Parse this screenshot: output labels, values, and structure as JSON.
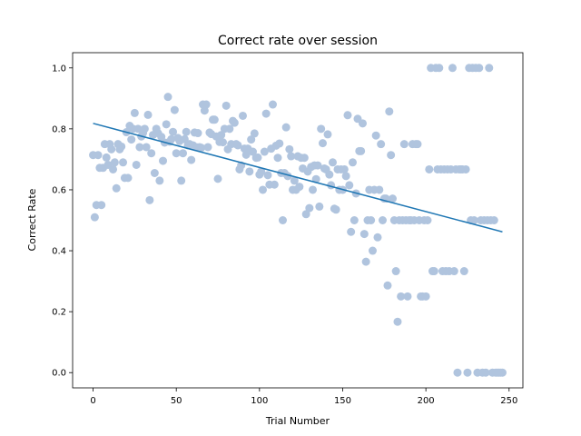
{
  "chart_data": {
    "type": "scatter",
    "title": "Correct rate over session",
    "xlabel": "Trial Number",
    "ylabel": "Correct Rate",
    "xlim": [
      -12.3,
      258.3
    ],
    "ylim": [
      -0.05,
      1.05
    ],
    "xticks": [
      0,
      50,
      100,
      150,
      200,
      250
    ],
    "yticks": [
      0.0,
      0.2,
      0.4,
      0.6,
      0.8,
      1.0
    ],
    "xtick_labels": [
      "0",
      "50",
      "100",
      "150",
      "200",
      "250"
    ],
    "ytick_labels": [
      "0.0",
      "0.2",
      "0.4",
      "0.6",
      "0.8",
      "1.0"
    ],
    "grid": false,
    "point_color": "#b0c4de",
    "trend_color": "#1f77b4",
    "trend_line": {
      "x": [
        0,
        246
      ],
      "y": [
        0.818,
        0.462
      ]
    },
    "points": [
      [
        0,
        0.714
      ],
      [
        1,
        0.51
      ],
      [
        2,
        0.55
      ],
      [
        3,
        0.714
      ],
      [
        4,
        0.672
      ],
      [
        5,
        0.55
      ],
      [
        6,
        0.672
      ],
      [
        7,
        0.75
      ],
      [
        8,
        0.706
      ],
      [
        9,
        0.682
      ],
      [
        10,
        0.75
      ],
      [
        11,
        0.733
      ],
      [
        12,
        0.667
      ],
      [
        13,
        0.69
      ],
      [
        14,
        0.605
      ],
      [
        15,
        0.75
      ],
      [
        16,
        0.733
      ],
      [
        17,
        0.742
      ],
      [
        18,
        0.69
      ],
      [
        19,
        0.639
      ],
      [
        20,
        0.789
      ],
      [
        21,
        0.639
      ],
      [
        22,
        0.81
      ],
      [
        23,
        0.765
      ],
      [
        24,
        0.8
      ],
      [
        25,
        0.852
      ],
      [
        26,
        0.682
      ],
      [
        27,
        0.8
      ],
      [
        28,
        0.74
      ],
      [
        29,
        0.775
      ],
      [
        30,
        0.786
      ],
      [
        31,
        0.8
      ],
      [
        32,
        0.74
      ],
      [
        33,
        0.846
      ],
      [
        34,
        0.566
      ],
      [
        35,
        0.72
      ],
      [
        36,
        0.78
      ],
      [
        37,
        0.655
      ],
      [
        38,
        0.8
      ],
      [
        39,
        0.786
      ],
      [
        40,
        0.63
      ],
      [
        41,
        0.774
      ],
      [
        42,
        0.695
      ],
      [
        43,
        0.755
      ],
      [
        44,
        0.815
      ],
      [
        45,
        0.905
      ],
      [
        46,
        0.758
      ],
      [
        47,
        0.766
      ],
      [
        48,
        0.79
      ],
      [
        49,
        0.862
      ],
      [
        50,
        0.72
      ],
      [
        51,
        0.77
      ],
      [
        52,
        0.76
      ],
      [
        53,
        0.63
      ],
      [
        54,
        0.72
      ],
      [
        55,
        0.766
      ],
      [
        56,
        0.79
      ],
      [
        57,
        0.746
      ],
      [
        58,
        0.75
      ],
      [
        59,
        0.698
      ],
      [
        60,
        0.746
      ],
      [
        61,
        0.788
      ],
      [
        62,
        0.74
      ],
      [
        63,
        0.786
      ],
      [
        64,
        0.74
      ],
      [
        65,
        0.738
      ],
      [
        66,
        0.88
      ],
      [
        67,
        0.86
      ],
      [
        68,
        0.88
      ],
      [
        69,
        0.74
      ],
      [
        70,
        0.788
      ],
      [
        71,
        0.783
      ],
      [
        72,
        0.83
      ],
      [
        73,
        0.83
      ],
      [
        74,
        0.775
      ],
      [
        75,
        0.636
      ],
      [
        76,
        0.757
      ],
      [
        77,
        0.78
      ],
      [
        78,
        0.756
      ],
      [
        79,
        0.8
      ],
      [
        80,
        0.876
      ],
      [
        81,
        0.733
      ],
      [
        82,
        0.8
      ],
      [
        83,
        0.75
      ],
      [
        84,
        0.826
      ],
      [
        85,
        0.82
      ],
      [
        86,
        0.75
      ],
      [
        87,
        0.746
      ],
      [
        88,
        0.667
      ],
      [
        89,
        0.68
      ],
      [
        90,
        0.843
      ],
      [
        91,
        0.735
      ],
      [
        92,
        0.715
      ],
      [
        93,
        0.735
      ],
      [
        94,
        0.66
      ],
      [
        95,
        0.765
      ],
      [
        96,
        0.725
      ],
      [
        97,
        0.785
      ],
      [
        98,
        0.705
      ],
      [
        99,
        0.706
      ],
      [
        100,
        0.65
      ],
      [
        101,
        0.66
      ],
      [
        102,
        0.6
      ],
      [
        103,
        0.725
      ],
      [
        104,
        0.85
      ],
      [
        105,
        0.648
      ],
      [
        106,
        0.617
      ],
      [
        107,
        0.735
      ],
      [
        108,
        0.88
      ],
      [
        109,
        0.617
      ],
      [
        110,
        0.745
      ],
      [
        111,
        0.705
      ],
      [
        112,
        0.752
      ],
      [
        113,
        0.655
      ],
      [
        114,
        0.5
      ],
      [
        115,
        0.655
      ],
      [
        116,
        0.805
      ],
      [
        117,
        0.645
      ],
      [
        118,
        0.733
      ],
      [
        119,
        0.71
      ],
      [
        120,
        0.6
      ],
      [
        121,
        0.63
      ],
      [
        122,
        0.6
      ],
      [
        123,
        0.71
      ],
      [
        124,
        0.61
      ],
      [
        125,
        0.705
      ],
      [
        126,
        0.67
      ],
      [
        127,
        0.705
      ],
      [
        128,
        0.52
      ],
      [
        129,
        0.66
      ],
      [
        130,
        0.54
      ],
      [
        131,
        0.675
      ],
      [
        132,
        0.6
      ],
      [
        133,
        0.68
      ],
      [
        134,
        0.635
      ],
      [
        135,
        0.68
      ],
      [
        136,
        0.545
      ],
      [
        137,
        0.8
      ],
      [
        138,
        0.753
      ],
      [
        139,
        0.67
      ],
      [
        140,
        0.667
      ],
      [
        141,
        0.782
      ],
      [
        142,
        0.65
      ],
      [
        143,
        0.615
      ],
      [
        144,
        0.69
      ],
      [
        145,
        0.538
      ],
      [
        146,
        0.535
      ],
      [
        147,
        0.667
      ],
      [
        148,
        0.6
      ],
      [
        149,
        0.667
      ],
      [
        150,
        0.6
      ],
      [
        151,
        0.667
      ],
      [
        152,
        0.645
      ],
      [
        153,
        0.845
      ],
      [
        154,
        0.615
      ],
      [
        155,
        0.462
      ],
      [
        156,
        0.69
      ],
      [
        157,
        0.5
      ],
      [
        158,
        0.588
      ],
      [
        159,
        0.833
      ],
      [
        160,
        0.727
      ],
      [
        161,
        0.727
      ],
      [
        162,
        0.818
      ],
      [
        163,
        0.455
      ],
      [
        164,
        0.364
      ],
      [
        165,
        0.5
      ],
      [
        166,
        0.6
      ],
      [
        167,
        0.5
      ],
      [
        168,
        0.4
      ],
      [
        169,
        0.6
      ],
      [
        170,
        0.778
      ],
      [
        171,
        0.444
      ],
      [
        172,
        0.6
      ],
      [
        173,
        0.75
      ],
      [
        174,
        0.5
      ],
      [
        175,
        0.571
      ],
      [
        176,
        0.571
      ],
      [
        177,
        0.286
      ],
      [
        178,
        0.857
      ],
      [
        179,
        0.714
      ],
      [
        180,
        0.571
      ],
      [
        181,
        0.5
      ],
      [
        182,
        0.333
      ],
      [
        183,
        0.167
      ],
      [
        184,
        0.5
      ],
      [
        185,
        0.25
      ],
      [
        186,
        0.5
      ],
      [
        187,
        0.75
      ],
      [
        188,
        0.5
      ],
      [
        189,
        0.25
      ],
      [
        190,
        0.5
      ],
      [
        191,
        0.5
      ],
      [
        192,
        0.75
      ],
      [
        193,
        0.5
      ],
      [
        194,
        0.75
      ],
      [
        195,
        0.75
      ],
      [
        196,
        0.5
      ],
      [
        197,
        0.25
      ],
      [
        198,
        0.25
      ],
      [
        199,
        0.5
      ],
      [
        200,
        0.25
      ],
      [
        201,
        0.5
      ],
      [
        202,
        0.667
      ],
      [
        203,
        1.0
      ],
      [
        204,
        0.333
      ],
      [
        205,
        0.333
      ],
      [
        206,
        1.0
      ],
      [
        207,
        0.667
      ],
      [
        208,
        1.0
      ],
      [
        209,
        0.667
      ],
      [
        210,
        0.333
      ],
      [
        211,
        0.667
      ],
      [
        212,
        0.333
      ],
      [
        213,
        0.667
      ],
      [
        214,
        0.333
      ],
      [
        215,
        0.667
      ],
      [
        216,
        1.0
      ],
      [
        217,
        0.333
      ],
      [
        218,
        0.667
      ],
      [
        219,
        0.0
      ],
      [
        220,
        0.667
      ],
      [
        221,
        0.667
      ],
      [
        222,
        0.667
      ],
      [
        223,
        0.333
      ],
      [
        224,
        0.667
      ],
      [
        225,
        0.0
      ],
      [
        226,
        1.0
      ],
      [
        227,
        0.5
      ],
      [
        228,
        1.0
      ],
      [
        229,
        0.5
      ],
      [
        230,
        1.0
      ],
      [
        231,
        0.0
      ],
      [
        232,
        1.0
      ],
      [
        233,
        0.5
      ],
      [
        234,
        0.0
      ],
      [
        235,
        0.5
      ],
      [
        236,
        0.0
      ],
      [
        237,
        0.5
      ],
      [
        238,
        1.0
      ],
      [
        239,
        0.5
      ],
      [
        240,
        0.0
      ],
      [
        241,
        0.5
      ],
      [
        242,
        0.0
      ],
      [
        243,
        0.0
      ],
      [
        244,
        0.0
      ],
      [
        245,
        0.0
      ],
      [
        246,
        0.0
      ]
    ]
  }
}
